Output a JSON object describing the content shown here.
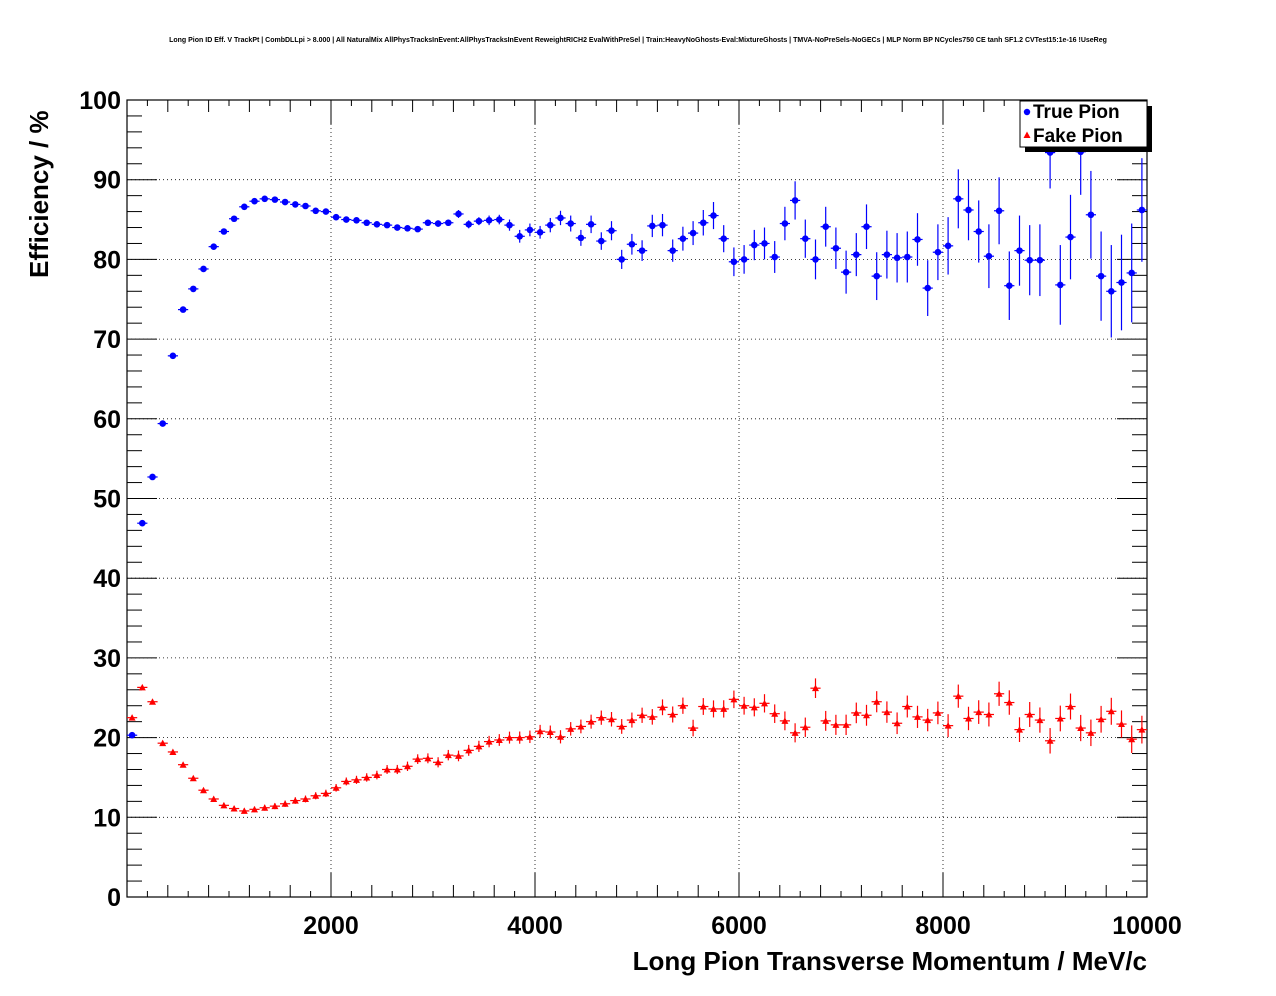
{
  "chart_data": {
    "type": "scatter",
    "title": "Long Pion ID Eff. V TrackPt | CombDLLpi > 8.000 | All NaturalMix AllPhysTracksInEvent:AllPhysTracksInEvent ReweightRICH2 EvalWithPreSel | Train:HeavyNoGhosts-Eval:MixtureGhosts | TMVA-NoPreSels-NoGECs | MLP Norm BP NCycles750 CE tanh SF1.2 CVTest15:1e-16 !UseReg",
    "xlabel": "Long Pion Transverse Momentum / MeV/c",
    "ylabel": "Efficiency / %",
    "xlim": [
      0,
      10000
    ],
    "ylim": [
      0,
      100
    ],
    "xticks": [
      2000,
      4000,
      6000,
      8000,
      10000
    ],
    "xtick_labels": [
      "2000",
      "4000",
      "6000",
      "8000",
      "10000"
    ],
    "yticks": [
      0,
      10,
      20,
      30,
      40,
      50,
      60,
      70,
      80,
      90,
      100
    ],
    "ytick_labels": [
      "0",
      "10",
      "20",
      "30",
      "40",
      "50",
      "60",
      "70",
      "80",
      "90",
      "100"
    ],
    "grid": true,
    "legend_position": "top-right",
    "colors": {
      "true_pion": "#0000ff",
      "fake_pion": "#ff0000"
    },
    "series": [
      {
        "name": "True Pion",
        "marker": "circle",
        "x": [
          50,
          150,
          250,
          350,
          450,
          550,
          650,
          750,
          850,
          950,
          1050,
          1150,
          1250,
          1350,
          1450,
          1550,
          1650,
          1750,
          1850,
          1950,
          2050,
          2150,
          2250,
          2350,
          2450,
          2550,
          2650,
          2750,
          2850,
          2950,
          3050,
          3150,
          3250,
          3350,
          3450,
          3550,
          3650,
          3750,
          3850,
          3950,
          4050,
          4150,
          4250,
          4350,
          4450,
          4550,
          4650,
          4750,
          4850,
          4950,
          5050,
          5150,
          5250,
          5350,
          5450,
          5550,
          5650,
          5750,
          5850,
          5950,
          6050,
          6150,
          6250,
          6350,
          6450,
          6550,
          6650,
          6750,
          6850,
          6950,
          7050,
          7150,
          7250,
          7350,
          7450,
          7550,
          7650,
          7750,
          7850,
          7950,
          8050,
          8150,
          8250,
          8350,
          8450,
          8550,
          8650,
          8750,
          8850,
          8950,
          9050,
          9150,
          9250,
          9350,
          9450,
          9550,
          9650,
          9750,
          9850,
          9950
        ],
        "y": [
          20.3,
          46.9,
          52.7,
          59.4,
          67.9,
          73.7,
          76.3,
          78.8,
          81.6,
          83.5,
          85.1,
          86.6,
          87.3,
          87.6,
          87.5,
          87.2,
          86.9,
          86.7,
          86.1,
          86.0,
          85.3,
          85.0,
          84.9,
          84.6,
          84.4,
          84.3,
          84.0,
          83.9,
          83.8,
          84.6,
          84.5,
          84.6,
          85.7,
          84.4,
          84.8,
          84.9,
          85.0,
          84.3,
          82.9,
          83.7,
          83.4,
          84.3,
          85.2,
          84.5,
          82.7,
          84.4,
          82.3,
          83.6,
          80.0,
          81.9,
          81.1,
          84.2,
          84.3,
          81.1,
          82.6,
          83.3,
          84.6,
          85.5,
          82.6,
          79.7,
          80.0,
          81.8,
          82.0,
          80.3,
          84.5,
          87.4,
          82.6,
          80.0,
          84.1,
          81.4,
          78.4,
          80.6,
          84.1,
          77.9,
          80.6,
          80.2,
          80.3,
          82.5,
          76.4,
          80.9,
          81.7,
          87.6,
          86.2,
          83.5,
          80.4,
          86.1,
          76.7,
          81.1,
          79.9,
          79.9,
          93.4,
          76.8,
          82.8,
          93.5,
          85.6,
          77.9,
          76.0,
          77.1,
          78.3,
          86.2
        ],
        "yerr": [
          0.3,
          0.3,
          0.3,
          0.3,
          0.3,
          0.3,
          0.3,
          0.3,
          0.3,
          0.3,
          0.3,
          0.3,
          0.3,
          0.3,
          0.3,
          0.3,
          0.3,
          0.3,
          0.3,
          0.3,
          0.3,
          0.3,
          0.3,
          0.3,
          0.3,
          0.3,
          0.3,
          0.3,
          0.3,
          0.4,
          0.4,
          0.4,
          0.5,
          0.5,
          0.5,
          0.6,
          0.6,
          0.7,
          0.8,
          0.8,
          0.8,
          0.9,
          0.9,
          1.0,
          1.0,
          1.1,
          1.1,
          1.2,
          1.2,
          1.3,
          1.3,
          1.4,
          1.4,
          1.4,
          1.5,
          1.5,
          1.6,
          1.7,
          1.7,
          1.8,
          1.8,
          1.9,
          2.0,
          2.0,
          2.1,
          2.4,
          2.4,
          2.5,
          2.5,
          2.6,
          2.7,
          2.7,
          2.8,
          3.0,
          3.0,
          3.1,
          3.2,
          3.3,
          3.5,
          3.5,
          3.6,
          3.7,
          3.8,
          3.9,
          4.0,
          4.2,
          4.3,
          4.4,
          4.4,
          4.5,
          4.5,
          5.0,
          5.3,
          5.4,
          5.5,
          5.6,
          5.8,
          6.0,
          6.2,
          6.5
        ]
      },
      {
        "name": "Fake Pion",
        "marker": "triangle",
        "x": [
          50,
          150,
          250,
          350,
          450,
          550,
          650,
          750,
          850,
          950,
          1050,
          1150,
          1250,
          1350,
          1450,
          1550,
          1650,
          1750,
          1850,
          1950,
          2050,
          2150,
          2250,
          2350,
          2450,
          2550,
          2650,
          2750,
          2850,
          2950,
          3050,
          3150,
          3250,
          3350,
          3450,
          3550,
          3650,
          3750,
          3850,
          3950,
          4050,
          4150,
          4250,
          4350,
          4450,
          4550,
          4650,
          4750,
          4850,
          4950,
          5050,
          5150,
          5250,
          5350,
          5450,
          5550,
          5650,
          5750,
          5850,
          5950,
          6050,
          6150,
          6250,
          6350,
          6450,
          6550,
          6650,
          6750,
          6850,
          6950,
          7050,
          7150,
          7250,
          7350,
          7450,
          7550,
          7650,
          7750,
          7850,
          7950,
          8050,
          8150,
          8250,
          8350,
          8450,
          8550,
          8650,
          8750,
          8850,
          8950,
          9050,
          9150,
          9250,
          9350,
          9450,
          9550,
          9650,
          9750,
          9850,
          9950
        ],
        "y": [
          22.5,
          26.3,
          24.5,
          19.3,
          18.2,
          16.6,
          14.9,
          13.4,
          12.3,
          11.5,
          11.1,
          10.8,
          11.0,
          11.2,
          11.4,
          11.7,
          12.1,
          12.3,
          12.7,
          13.0,
          13.7,
          14.5,
          14.7,
          15.0,
          15.3,
          16.0,
          16.0,
          16.4,
          17.3,
          17.4,
          16.9,
          17.8,
          17.7,
          18.4,
          18.9,
          19.5,
          19.7,
          20.0,
          20.0,
          20.1,
          20.8,
          20.7,
          20.1,
          21.1,
          21.4,
          22.0,
          22.5,
          22.3,
          21.4,
          22.2,
          22.8,
          22.6,
          23.8,
          22.9,
          24.0,
          21.2,
          23.9,
          23.6,
          23.6,
          24.8,
          24.0,
          23.8,
          24.3,
          23.0,
          22.1,
          20.6,
          21.3,
          26.2,
          22.1,
          21.6,
          21.6,
          23.1,
          22.8,
          24.5,
          23.2,
          21.8,
          23.9,
          22.6,
          22.2,
          23.1,
          21.5,
          25.2,
          22.4,
          23.2,
          22.9,
          25.5,
          24.4,
          21.0,
          22.9,
          22.2,
          19.6,
          22.4,
          23.9,
          21.2,
          20.6,
          22.3,
          23.3,
          21.7,
          19.8,
          21.0
        ]
      }
    ]
  }
}
